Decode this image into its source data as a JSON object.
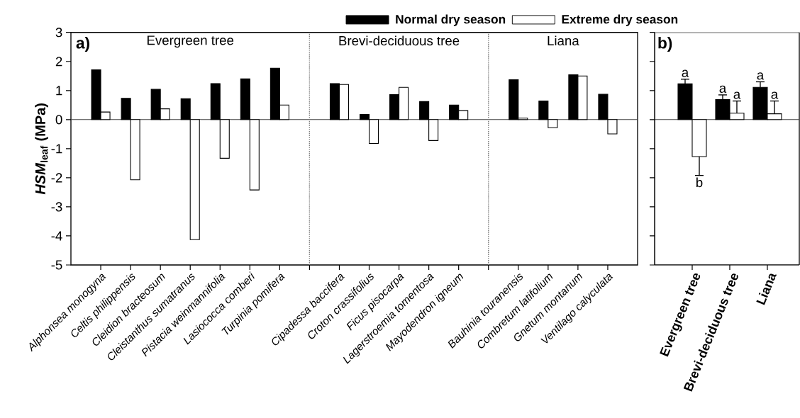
{
  "chart_data": [
    {
      "type": "bar",
      "ylabel": "*HSM*$_{leaf}$ (MPa)",
      "categories": [
        "Alphonsea monogyna",
        "Celtis philippensis",
        "Cleidion bracteosum",
        "Cleistanthus sumatranus",
        "Pistacia weinmannifolia",
        "Lasiococca comberi",
        "Turpinia pomifera",
        null,
        "Cipadessa baccifera",
        "Croton crassifolius",
        "Ficus pisocarpa",
        "Lagerstroemia tomentosa",
        "Mayodendron igneum",
        null,
        "Bauhinia touranensis",
        "Combretum latifolium",
        "Gnetum montanum",
        "Ventilago calyculata"
      ],
      "series": [
        {
          "name": "Normal dry season",
          "color": "#000000",
          "values": [
            1.71,
            0.73,
            1.04,
            0.72,
            1.24,
            1.4,
            1.77,
            null,
            1.24,
            0.18,
            0.86,
            0.62,
            0.5,
            null,
            1.37,
            0.64,
            1.54,
            0.87
          ]
        },
        {
          "name": "Extreme dry season",
          "color": "#ffffff",
          "values": [
            0.26,
            -2.07,
            0.37,
            -4.13,
            -1.33,
            -2.42,
            0.5,
            null,
            1.21,
            -0.82,
            1.11,
            -0.72,
            0.31,
            null,
            0.05,
            -0.28,
            1.5,
            -0.49
          ]
        }
      ],
      "ylim": [
        -5,
        3
      ],
      "yticks": [
        -5,
        -4,
        -3,
        -2,
        -1,
        0,
        1,
        2,
        3
      ],
      "legend": "top",
      "annotations": [
        "a)",
        "Evergreen tree",
        "Brevi-deciduous tree",
        "Liana"
      ]
    },
    {
      "type": "bar",
      "categories": [
        "Evergreen tree",
        "Brevi-deciduous tree",
        "Liana"
      ],
      "series": [
        {
          "color": "#000000",
          "values": [
            1.23,
            0.69,
            1.11
          ],
          "errors": [
            [
              1.23,
              1.39
            ],
            [
              0.69,
              0.85
            ],
            [
              1.11,
              1.3
            ]
          ]
        },
        {
          "color": "#ffffff",
          "values": [
            -1.27,
            0.22,
            0.2
          ],
          "errors": [
            [
              -1.92,
              -1.27
            ],
            [
              0.22,
              0.64
            ],
            [
              0.2,
              0.64
            ]
          ]
        }
      ],
      "ylim": [
        -5,
        3
      ],
      "yticks": [
        -5,
        -4,
        -3,
        -2,
        -1,
        0,
        1,
        2,
        3
      ],
      "tick_labels": "x",
      "annotations": [
        "b)",
        "a",
        "b",
        "a",
        "a",
        "a",
        "a"
      ]
    }
  ]
}
